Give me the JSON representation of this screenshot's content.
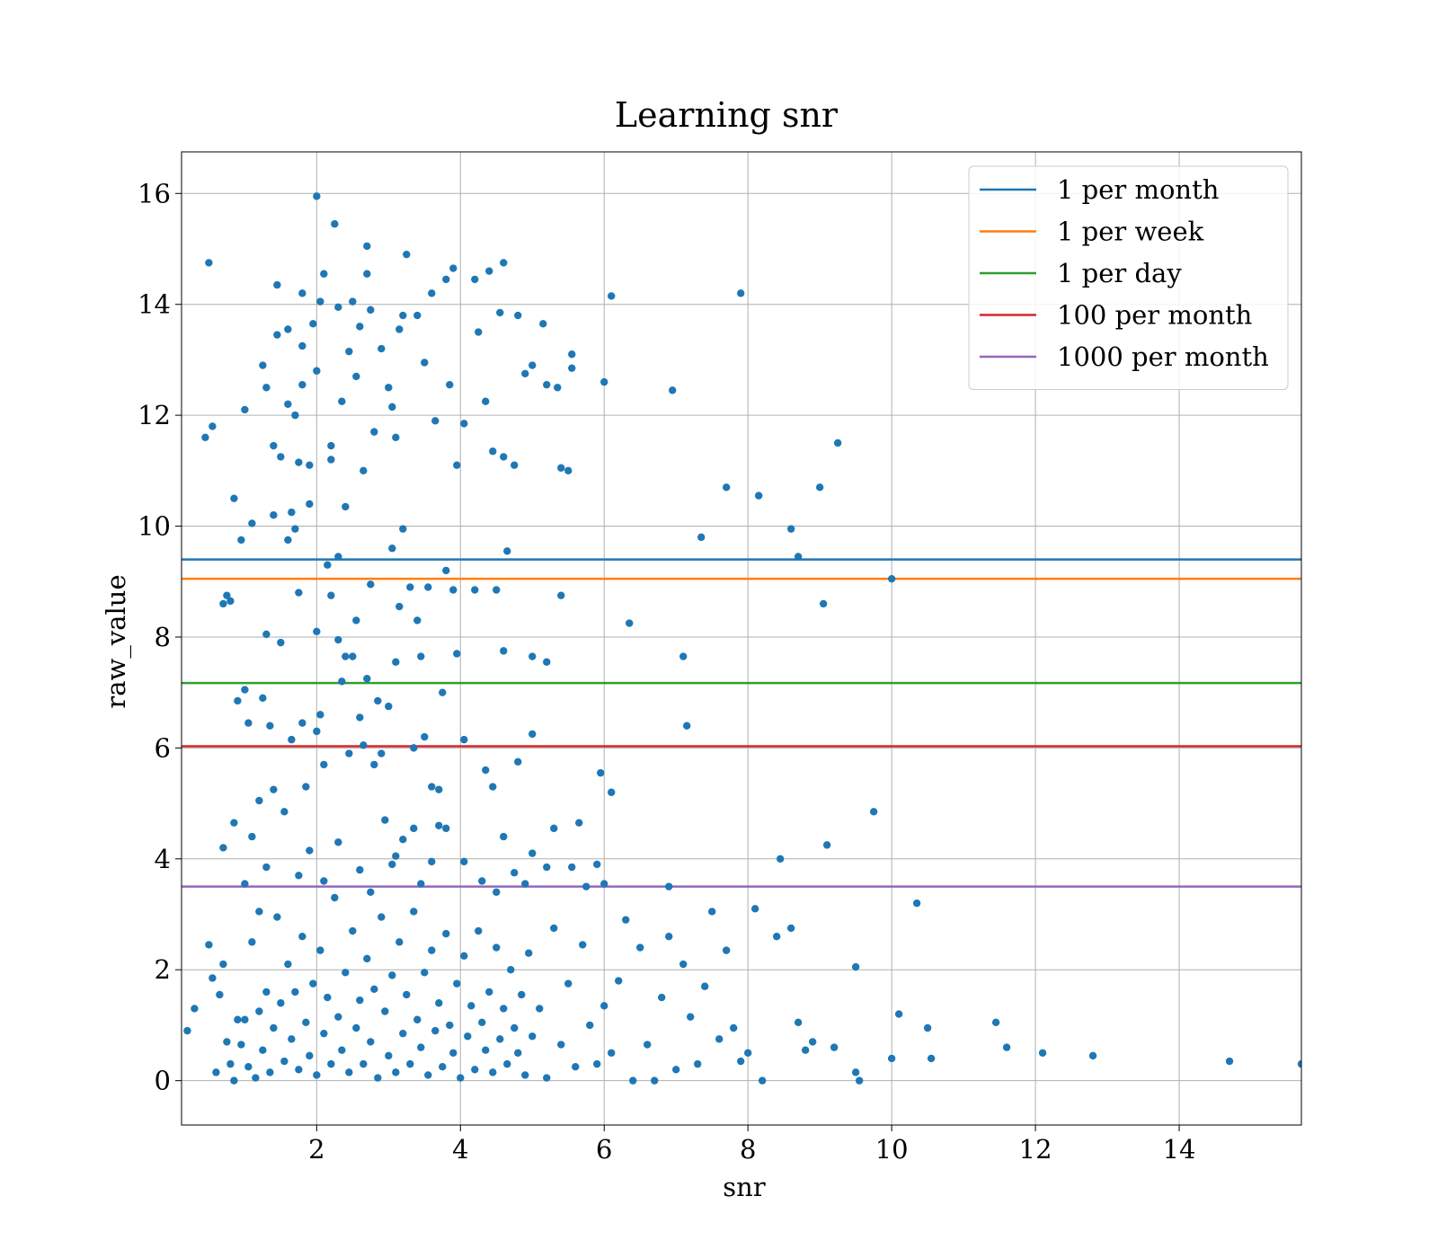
{
  "chart_data": {
    "type": "scatter",
    "title": "Learning snr",
    "xlabel": "snr",
    "ylabel": "raw_value",
    "xlim": [
      0.12,
      15.7
    ],
    "ylim": [
      -0.8,
      16.75
    ],
    "xticks": [
      2,
      4,
      6,
      8,
      10,
      12,
      14
    ],
    "yticks": [
      0,
      2,
      4,
      6,
      8,
      10,
      12,
      14,
      16
    ],
    "grid": true,
    "legend_position": "top-right",
    "point_color": "#1f77b4",
    "points": [
      [
        0.2,
        0.9
      ],
      [
        0.3,
        1.3
      ],
      [
        0.5,
        2.45
      ],
      [
        0.55,
        1.85
      ],
      [
        0.6,
        0.15
      ],
      [
        0.65,
        1.55
      ],
      [
        0.7,
        2.1
      ],
      [
        0.75,
        0.7
      ],
      [
        0.8,
        0.3
      ],
      [
        0.85,
        0.0
      ],
      [
        0.9,
        1.1
      ],
      [
        0.95,
        0.65
      ],
      [
        1.0,
        1.1
      ],
      [
        1.05,
        0.25
      ],
      [
        1.1,
        2.5
      ],
      [
        1.15,
        0.05
      ],
      [
        1.2,
        1.25
      ],
      [
        1.25,
        0.55
      ],
      [
        1.3,
        1.6
      ],
      [
        1.35,
        0.15
      ],
      [
        1.4,
        0.95
      ],
      [
        1.45,
        2.95
      ],
      [
        1.5,
        1.4
      ],
      [
        1.55,
        0.35
      ],
      [
        1.6,
        2.1
      ],
      [
        1.65,
        0.75
      ],
      [
        1.7,
        1.6
      ],
      [
        1.75,
        0.2
      ],
      [
        1.8,
        2.6
      ],
      [
        1.85,
        1.05
      ],
      [
        1.9,
        0.45
      ],
      [
        1.95,
        1.75
      ],
      [
        2.0,
        0.1
      ],
      [
        2.05,
        2.35
      ],
      [
        2.1,
        0.85
      ],
      [
        2.15,
        1.5
      ],
      [
        2.2,
        0.3
      ],
      [
        2.25,
        3.3
      ],
      [
        2.3,
        1.15
      ],
      [
        2.35,
        0.55
      ],
      [
        2.4,
        1.95
      ],
      [
        2.45,
        0.15
      ],
      [
        2.5,
        2.7
      ],
      [
        2.55,
        0.95
      ],
      [
        2.6,
        1.45
      ],
      [
        2.65,
        0.3
      ],
      [
        2.7,
        2.2
      ],
      [
        2.75,
        0.7
      ],
      [
        2.8,
        1.65
      ],
      [
        2.85,
        0.05
      ],
      [
        2.9,
        2.95
      ],
      [
        2.95,
        1.25
      ],
      [
        3.0,
        0.45
      ],
      [
        3.05,
        1.9
      ],
      [
        3.1,
        0.15
      ],
      [
        3.15,
        2.5
      ],
      [
        3.2,
        0.85
      ],
      [
        3.25,
        1.55
      ],
      [
        3.3,
        0.3
      ],
      [
        3.35,
        3.05
      ],
      [
        3.4,
        1.1
      ],
      [
        3.45,
        0.6
      ],
      [
        3.5,
        1.95
      ],
      [
        3.55,
        0.1
      ],
      [
        3.6,
        2.35
      ],
      [
        3.65,
        0.9
      ],
      [
        3.7,
        1.4
      ],
      [
        3.75,
        0.25
      ],
      [
        3.8,
        2.65
      ],
      [
        3.85,
        1.0
      ],
      [
        3.9,
        0.5
      ],
      [
        3.95,
        1.75
      ],
      [
        4.0,
        0.05
      ],
      [
        4.05,
        2.25
      ],
      [
        4.1,
        0.8
      ],
      [
        4.15,
        1.35
      ],
      [
        4.2,
        0.2
      ],
      [
        4.25,
        2.7
      ],
      [
        4.3,
        1.05
      ],
      [
        4.35,
        0.55
      ],
      [
        4.4,
        1.6
      ],
      [
        4.45,
        0.15
      ],
      [
        4.5,
        2.4
      ],
      [
        4.55,
        0.75
      ],
      [
        4.6,
        1.3
      ],
      [
        4.65,
        0.3
      ],
      [
        4.7,
        2.0
      ],
      [
        4.75,
        0.95
      ],
      [
        4.8,
        0.5
      ],
      [
        4.85,
        1.55
      ],
      [
        4.9,
        0.1
      ],
      [
        4.95,
        2.3
      ],
      [
        5.0,
        0.8
      ],
      [
        5.1,
        1.3
      ],
      [
        5.2,
        0.05
      ],
      [
        5.3,
        2.75
      ],
      [
        5.4,
        0.65
      ],
      [
        5.5,
        1.75
      ],
      [
        5.6,
        0.25
      ],
      [
        5.7,
        2.45
      ],
      [
        5.8,
        1.0
      ],
      [
        5.9,
        0.3
      ],
      [
        6.0,
        1.35
      ],
      [
        6.1,
        0.5
      ],
      [
        6.2,
        1.8
      ],
      [
        6.3,
        2.9
      ],
      [
        6.4,
        0.0
      ],
      [
        6.5,
        2.4
      ],
      [
        6.6,
        0.65
      ],
      [
        6.7,
        0.0
      ],
      [
        6.8,
        1.5
      ],
      [
        6.9,
        2.6
      ],
      [
        7.0,
        0.2
      ],
      [
        7.1,
        2.1
      ],
      [
        7.2,
        1.15
      ],
      [
        7.3,
        0.3
      ],
      [
        7.4,
        1.7
      ],
      [
        7.5,
        3.05
      ],
      [
        7.6,
        0.75
      ],
      [
        7.7,
        2.35
      ],
      [
        7.8,
        0.95
      ],
      [
        7.9,
        0.35
      ],
      [
        8.0,
        0.5
      ],
      [
        8.1,
        3.1
      ],
      [
        8.2,
        0.0
      ],
      [
        8.4,
        2.6
      ],
      [
        8.6,
        2.75
      ],
      [
        8.7,
        1.05
      ],
      [
        8.8,
        0.55
      ],
      [
        8.9,
        0.7
      ],
      [
        9.2,
        0.6
      ],
      [
        9.5,
        2.05
      ],
      [
        9.5,
        0.15
      ],
      [
        9.55,
        0.0
      ],
      [
        10.0,
        0.4
      ],
      [
        10.1,
        1.2
      ],
      [
        10.35,
        3.2
      ],
      [
        10.5,
        0.95
      ],
      [
        10.55,
        0.4
      ],
      [
        11.45,
        1.05
      ],
      [
        11.6,
        0.6
      ],
      [
        12.1,
        0.5
      ],
      [
        12.8,
        0.45
      ],
      [
        14.7,
        0.35
      ],
      [
        15.7,
        0.3
      ],
      [
        0.45,
        11.6
      ],
      [
        0.5,
        14.75
      ],
      [
        0.55,
        11.8
      ],
      [
        0.7,
        8.6
      ],
      [
        0.75,
        8.75
      ],
      [
        0.8,
        8.65
      ],
      [
        0.85,
        10.5
      ],
      [
        0.95,
        9.75
      ],
      [
        1.0,
        12.1
      ],
      [
        1.1,
        10.05
      ],
      [
        1.25,
        12.9
      ],
      [
        1.3,
        12.5
      ],
      [
        1.4,
        11.45
      ],
      [
        1.4,
        10.2
      ],
      [
        1.45,
        14.35
      ],
      [
        1.45,
        13.45
      ],
      [
        1.5,
        11.25
      ],
      [
        1.6,
        13.55
      ],
      [
        1.6,
        12.2
      ],
      [
        1.65,
        10.25
      ],
      [
        1.7,
        12.0
      ],
      [
        1.75,
        11.15
      ],
      [
        1.8,
        14.2
      ],
      [
        1.8,
        13.25
      ],
      [
        1.8,
        12.55
      ],
      [
        1.9,
        11.1
      ],
      [
        1.9,
        10.4
      ],
      [
        1.95,
        13.65
      ],
      [
        2.0,
        12.8
      ],
      [
        2.0,
        15.95
      ],
      [
        2.05,
        14.05
      ],
      [
        2.1,
        14.55
      ],
      [
        2.2,
        11.45
      ],
      [
        2.2,
        11.2
      ],
      [
        2.25,
        15.45
      ],
      [
        2.3,
        13.95
      ],
      [
        2.35,
        12.25
      ],
      [
        2.4,
        10.35
      ],
      [
        2.45,
        13.15
      ],
      [
        2.5,
        14.05
      ],
      [
        2.55,
        12.7
      ],
      [
        2.6,
        13.6
      ],
      [
        2.65,
        11.0
      ],
      [
        2.7,
        15.05
      ],
      [
        2.7,
        14.55
      ],
      [
        2.75,
        13.9
      ],
      [
        2.8,
        11.7
      ],
      [
        2.9,
        13.2
      ],
      [
        3.0,
        12.5
      ],
      [
        3.05,
        12.15
      ],
      [
        3.1,
        11.6
      ],
      [
        3.15,
        13.55
      ],
      [
        3.2,
        13.8
      ],
      [
        3.25,
        14.9
      ],
      [
        3.4,
        13.8
      ],
      [
        3.5,
        12.95
      ],
      [
        3.6,
        14.2
      ],
      [
        3.65,
        11.9
      ],
      [
        3.8,
        14.45
      ],
      [
        3.85,
        12.55
      ],
      [
        3.9,
        14.65
      ],
      [
        3.95,
        11.1
      ],
      [
        4.05,
        11.85
      ],
      [
        4.2,
        14.45
      ],
      [
        4.25,
        13.5
      ],
      [
        4.35,
        12.25
      ],
      [
        4.4,
        14.6
      ],
      [
        4.45,
        11.35
      ],
      [
        4.55,
        13.85
      ],
      [
        4.6,
        14.75
      ],
      [
        4.6,
        11.25
      ],
      [
        4.75,
        11.1
      ],
      [
        4.8,
        13.8
      ],
      [
        4.9,
        12.75
      ],
      [
        5.0,
        12.9
      ],
      [
        5.15,
        13.65
      ],
      [
        5.2,
        12.55
      ],
      [
        5.35,
        12.5
      ],
      [
        5.4,
        11.05
      ],
      [
        5.5,
        11.0
      ],
      [
        5.55,
        13.1
      ],
      [
        5.55,
        12.85
      ],
      [
        6.0,
        12.6
      ],
      [
        6.1,
        14.15
      ],
      [
        6.95,
        12.45
      ],
      [
        7.9,
        14.2
      ],
      [
        9.25,
        11.5
      ],
      [
        0.7,
        4.2
      ],
      [
        0.85,
        4.65
      ],
      [
        0.9,
        6.85
      ],
      [
        1.0,
        7.05
      ],
      [
        1.05,
        6.45
      ],
      [
        1.1,
        4.4
      ],
      [
        1.2,
        5.05
      ],
      [
        1.25,
        6.9
      ],
      [
        1.3,
        8.05
      ],
      [
        1.35,
        6.4
      ],
      [
        1.4,
        5.25
      ],
      [
        1.5,
        7.9
      ],
      [
        1.55,
        4.85
      ],
      [
        1.6,
        9.75
      ],
      [
        1.65,
        6.15
      ],
      [
        1.7,
        9.95
      ],
      [
        1.75,
        8.8
      ],
      [
        1.8,
        6.45
      ],
      [
        1.85,
        5.3
      ],
      [
        1.9,
        4.15
      ],
      [
        2.0,
        8.1
      ],
      [
        2.0,
        6.3
      ],
      [
        2.05,
        6.6
      ],
      [
        2.1,
        5.7
      ],
      [
        2.15,
        9.3
      ],
      [
        2.2,
        8.75
      ],
      [
        2.3,
        7.95
      ],
      [
        2.3,
        9.45
      ],
      [
        2.35,
        7.2
      ],
      [
        2.4,
        7.65
      ],
      [
        2.45,
        5.9
      ],
      [
        2.5,
        7.65
      ],
      [
        2.55,
        8.3
      ],
      [
        2.6,
        6.55
      ],
      [
        2.65,
        6.05
      ],
      [
        2.7,
        7.25
      ],
      [
        2.75,
        8.95
      ],
      [
        2.8,
        5.7
      ],
      [
        2.85,
        6.85
      ],
      [
        2.9,
        5.9
      ],
      [
        3.0,
        6.75
      ],
      [
        3.05,
        9.6
      ],
      [
        3.1,
        7.55
      ],
      [
        3.15,
        8.55
      ],
      [
        3.2,
        9.95
      ],
      [
        3.3,
        8.9
      ],
      [
        3.35,
        6.0
      ],
      [
        3.4,
        8.3
      ],
      [
        3.45,
        7.65
      ],
      [
        3.5,
        6.2
      ],
      [
        3.55,
        8.9
      ],
      [
        3.6,
        5.3
      ],
      [
        3.7,
        5.25
      ],
      [
        3.75,
        7.0
      ],
      [
        3.8,
        9.2
      ],
      [
        3.9,
        8.85
      ],
      [
        3.95,
        7.7
      ],
      [
        4.05,
        6.15
      ],
      [
        4.2,
        8.85
      ],
      [
        4.35,
        5.6
      ],
      [
        4.45,
        5.3
      ],
      [
        4.5,
        8.85
      ],
      [
        4.6,
        7.75
      ],
      [
        4.65,
        9.55
      ],
      [
        4.8,
        5.75
      ],
      [
        5.0,
        6.25
      ],
      [
        5.0,
        7.65
      ],
      [
        5.2,
        7.55
      ],
      [
        5.4,
        8.75
      ],
      [
        5.95,
        5.55
      ],
      [
        6.1,
        5.2
      ],
      [
        6.35,
        8.25
      ],
      [
        7.1,
        7.65
      ],
      [
        7.15,
        6.4
      ],
      [
        8.7,
        9.45
      ],
      [
        9.05,
        8.6
      ],
      [
        10.0,
        9.05
      ],
      [
        7.35,
        9.8
      ],
      [
        7.7,
        10.7
      ],
      [
        8.15,
        10.55
      ],
      [
        8.6,
        9.95
      ],
      [
        9.0,
        10.7
      ],
      [
        1.0,
        3.55
      ],
      [
        1.2,
        3.05
      ],
      [
        1.3,
        3.85
      ],
      [
        1.75,
        3.7
      ],
      [
        2.1,
        3.6
      ],
      [
        2.3,
        4.3
      ],
      [
        2.6,
        3.8
      ],
      [
        2.75,
        3.4
      ],
      [
        2.95,
        4.7
      ],
      [
        3.05,
        3.9
      ],
      [
        3.1,
        4.05
      ],
      [
        3.2,
        4.35
      ],
      [
        3.35,
        4.55
      ],
      [
        3.45,
        3.55
      ],
      [
        3.6,
        3.95
      ],
      [
        3.7,
        4.6
      ],
      [
        3.8,
        4.55
      ],
      [
        4.05,
        3.95
      ],
      [
        4.3,
        3.6
      ],
      [
        4.5,
        3.4
      ],
      [
        4.6,
        4.4
      ],
      [
        4.75,
        3.75
      ],
      [
        4.9,
        3.55
      ],
      [
        5.0,
        4.1
      ],
      [
        5.2,
        3.85
      ],
      [
        5.3,
        4.55
      ],
      [
        5.55,
        3.85
      ],
      [
        5.65,
        4.65
      ],
      [
        5.75,
        3.5
      ],
      [
        5.9,
        3.9
      ],
      [
        6.0,
        3.55
      ],
      [
        6.9,
        3.5
      ],
      [
        8.45,
        4.0
      ],
      [
        9.1,
        4.25
      ],
      [
        9.75,
        4.85
      ]
    ],
    "hlines": [
      {
        "name": "1 per month",
        "value": 9.4,
        "color": "#1f77b4"
      },
      {
        "name": "1 per week",
        "value": 9.05,
        "color": "#ff7f0e"
      },
      {
        "name": "1 per day",
        "value": 7.17,
        "color": "#2ca02c"
      },
      {
        "name": "100 per month",
        "value": 6.03,
        "color": "#d62728"
      },
      {
        "name": "1000 per month",
        "value": 3.5,
        "color": "#9467bd"
      }
    ]
  }
}
